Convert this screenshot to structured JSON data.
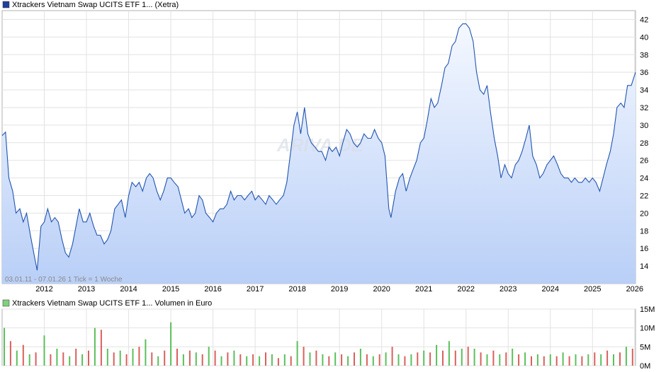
{
  "chart_data": [
    {
      "type": "area",
      "title": "Xtrackers Vietnam Swap UCITS ETF 1... (Xetra)",
      "legend": "Xtrackers Vietnam Swap UCITS ETF 1... (Xetra)",
      "legend_color": "#1f3f9f",
      "line_color": "#2255b0",
      "fill_top_color": "#f4f8ff",
      "fill_bottom_color": "#b9cff7",
      "grid": true,
      "y_axis_side": "right",
      "watermark": "ARIVA.DE",
      "note": "03.01.11 - 07.01.26   1 Tick = 1 Woche",
      "ylim": [
        12,
        43
      ],
      "y_ticks": [
        14,
        16,
        18,
        20,
        22,
        24,
        26,
        28,
        30,
        32,
        34,
        36,
        38,
        40,
        42
      ],
      "xlim": [
        2011.0,
        2026.02
      ],
      "x_ticks": [
        "2012",
        "2013",
        "2014",
        "2015",
        "2016",
        "2017",
        "2018",
        "2019",
        "2020",
        "2021",
        "2022",
        "2023",
        "2024",
        "2025",
        "2026"
      ],
      "series": [
        {
          "x": [
            2011.0,
            2011.08,
            2011.16,
            2011.25,
            2011.33,
            2011.42,
            2011.5,
            2011.58,
            2011.67,
            2011.75,
            2011.83,
            2011.92,
            2012.0,
            2012.08,
            2012.17,
            2012.25,
            2012.33,
            2012.42,
            2012.5,
            2012.58,
            2012.67,
            2012.75,
            2012.83,
            2012.92,
            2013.0,
            2013.08,
            2013.17,
            2013.25,
            2013.33,
            2013.42,
            2013.5,
            2013.58,
            2013.67,
            2013.75,
            2013.83,
            2013.92,
            2014.0,
            2014.08,
            2014.17,
            2014.25,
            2014.33,
            2014.42,
            2014.5,
            2014.58,
            2014.67,
            2014.75,
            2014.83,
            2014.92,
            2015.0,
            2015.08,
            2015.17,
            2015.25,
            2015.33,
            2015.42,
            2015.5,
            2015.58,
            2015.67,
            2015.75,
            2015.83,
            2015.92,
            2016.0,
            2016.08,
            2016.17,
            2016.25,
            2016.33,
            2016.42,
            2016.5,
            2016.58,
            2016.67,
            2016.75,
            2016.83,
            2016.92,
            2017.0,
            2017.08,
            2017.17,
            2017.25,
            2017.33,
            2017.42,
            2017.5,
            2017.58,
            2017.67,
            2017.75,
            2017.83,
            2017.92,
            2018.0,
            2018.08,
            2018.17,
            2018.25,
            2018.33,
            2018.42,
            2018.5,
            2018.58,
            2018.67,
            2018.75,
            2018.83,
            2018.92,
            2019.0,
            2019.08,
            2019.17,
            2019.25,
            2019.33,
            2019.42,
            2019.5,
            2019.58,
            2019.67,
            2019.75,
            2019.83,
            2019.92,
            2020.0,
            2020.08,
            2020.17,
            2020.22,
            2020.33,
            2020.42,
            2020.5,
            2020.58,
            2020.67,
            2020.75,
            2020.83,
            2020.92,
            2021.0,
            2021.08,
            2021.17,
            2021.25,
            2021.33,
            2021.42,
            2021.5,
            2021.58,
            2021.67,
            2021.75,
            2021.83,
            2021.92,
            2022.0,
            2022.08,
            2022.17,
            2022.25,
            2022.33,
            2022.42,
            2022.5,
            2022.58,
            2022.67,
            2022.75,
            2022.83,
            2022.92,
            2023.0,
            2023.08,
            2023.17,
            2023.25,
            2023.33,
            2023.42,
            2023.5,
            2023.58,
            2023.67,
            2023.75,
            2023.83,
            2023.92,
            2024.0,
            2024.08,
            2024.17,
            2024.25,
            2024.33,
            2024.42,
            2024.5,
            2024.58,
            2024.67,
            2024.75,
            2024.83,
            2024.92,
            2025.0,
            2025.08,
            2025.17,
            2025.25,
            2025.33,
            2025.42,
            2025.5,
            2025.58,
            2025.67,
            2025.75,
            2025.83,
            2025.92,
            2026.02
          ],
          "values": [
            28.8,
            29.2,
            24.0,
            22.5,
            20.0,
            20.5,
            19.0,
            20.0,
            17.5,
            15.5,
            13.5,
            18.5,
            19.0,
            20.5,
            19.0,
            19.5,
            19.0,
            17.0,
            15.5,
            15.0,
            16.5,
            18.5,
            20.5,
            19.0,
            19.0,
            20.0,
            18.5,
            17.5,
            17.5,
            16.5,
            17.0,
            18.0,
            20.5,
            21.0,
            21.5,
            19.5,
            22.0,
            23.5,
            23.0,
            23.5,
            22.5,
            24.0,
            24.5,
            24.0,
            22.5,
            21.5,
            22.5,
            24.0,
            24.0,
            23.5,
            23.0,
            21.5,
            20.0,
            20.5,
            19.5,
            20.0,
            22.0,
            21.5,
            20.0,
            19.5,
            19.0,
            20.0,
            20.5,
            20.5,
            21.0,
            22.5,
            21.5,
            22.0,
            22.0,
            21.5,
            22.0,
            22.5,
            21.5,
            22.0,
            21.5,
            21.0,
            22.0,
            21.5,
            21.0,
            21.5,
            22.0,
            23.5,
            26.5,
            30.0,
            31.5,
            29.0,
            32.0,
            29.0,
            28.0,
            27.5,
            27.0,
            27.0,
            26.0,
            27.5,
            27.0,
            27.5,
            26.5,
            28.0,
            29.5,
            29.0,
            28.0,
            27.5,
            28.0,
            29.0,
            28.5,
            28.5,
            29.5,
            28.5,
            28.0,
            26.5,
            20.5,
            19.5,
            22.5,
            24.0,
            24.5,
            22.5,
            24.0,
            25.0,
            26.0,
            28.0,
            28.5,
            30.5,
            33.0,
            32.0,
            32.5,
            34.5,
            36.5,
            37.0,
            39.0,
            39.5,
            41.0,
            41.5,
            41.5,
            41.0,
            39.5,
            36.0,
            34.0,
            33.5,
            34.5,
            31.5,
            28.5,
            26.5,
            24.0,
            25.5,
            24.5,
            24.0,
            25.5,
            26.0,
            27.0,
            28.5,
            30.0,
            26.5,
            25.5,
            24.0,
            24.5,
            25.5,
            26.0,
            26.5,
            25.5,
            24.5,
            24.0,
            24.0,
            23.5,
            24.0,
            23.5,
            23.5,
            24.0,
            23.5,
            24.0,
            23.5,
            22.5,
            24.0,
            25.5,
            27.0,
            29.0,
            32.0,
            32.5,
            32.0,
            34.5,
            34.5,
            36.0
          ]
        }
      ]
    },
    {
      "type": "bar",
      "title": "Xtrackers Vietnam Swap UCITS ETF 1... Volumen in Euro",
      "legend": "Xtrackers Vietnam Swap UCITS ETF 1... Volumen in Euro",
      "legend_color": "#7fd07f",
      "colors": [
        "#5cbf5c",
        "#d9605c"
      ],
      "grid": true,
      "y_axis_side": "right",
      "ylim": [
        0,
        15
      ],
      "y_ticks": [
        "0M",
        "5M",
        "10M",
        "15M"
      ],
      "y_unit": "M",
      "x_ticks": [
        "2012",
        "2013",
        "2014",
        "2015",
        "2016",
        "2017",
        "2018",
        "2019",
        "2020",
        "2021",
        "2022",
        "2023",
        "2024",
        "2025",
        "2026"
      ],
      "xlim": [
        2011.0,
        2026.02
      ],
      "series": [
        {
          "name": "Volumen",
          "x": [
            2011.05,
            2011.2,
            2011.35,
            2011.5,
            2011.65,
            2011.8,
            2012.0,
            2012.15,
            2012.3,
            2012.45,
            2012.6,
            2012.75,
            2012.9,
            2013.05,
            2013.2,
            2013.35,
            2013.5,
            2013.65,
            2013.8,
            2013.95,
            2014.1,
            2014.25,
            2014.4,
            2014.55,
            2014.7,
            2014.85,
            2015.0,
            2015.15,
            2015.3,
            2015.45,
            2015.6,
            2015.75,
            2015.9,
            2016.05,
            2016.2,
            2016.35,
            2016.5,
            2016.65,
            2016.8,
            2016.95,
            2017.1,
            2017.25,
            2017.4,
            2017.55,
            2017.7,
            2017.85,
            2018.0,
            2018.15,
            2018.3,
            2018.45,
            2018.6,
            2018.75,
            2018.9,
            2019.05,
            2019.2,
            2019.35,
            2019.5,
            2019.65,
            2019.8,
            2019.95,
            2020.1,
            2020.25,
            2020.4,
            2020.55,
            2020.7,
            2020.85,
            2021.0,
            2021.15,
            2021.3,
            2021.45,
            2021.6,
            2021.75,
            2021.9,
            2022.05,
            2022.2,
            2022.35,
            2022.5,
            2022.65,
            2022.8,
            2022.95,
            2023.1,
            2023.25,
            2023.4,
            2023.55,
            2023.7,
            2023.85,
            2024.0,
            2024.15,
            2024.3,
            2024.45,
            2024.6,
            2024.75,
            2024.9,
            2025.05,
            2025.2,
            2025.35,
            2025.5,
            2025.65,
            2025.8,
            2025.95
          ],
          "values": [
            10.0,
            6.5,
            4.0,
            5.5,
            3.0,
            3.5,
            8.0,
            3.0,
            4.5,
            3.5,
            2.5,
            4.5,
            3.0,
            4.0,
            10.0,
            9.5,
            4.5,
            3.5,
            4.0,
            3.0,
            4.5,
            5.0,
            7.0,
            3.5,
            2.5,
            4.0,
            11.5,
            4.5,
            3.0,
            4.0,
            3.5,
            3.0,
            5.0,
            4.0,
            2.5,
            3.5,
            4.0,
            3.0,
            2.5,
            3.0,
            2.5,
            3.5,
            3.0,
            2.0,
            3.0,
            2.5,
            6.5,
            5.0,
            3.5,
            4.0,
            3.0,
            2.5,
            3.5,
            3.0,
            2.5,
            3.5,
            4.5,
            3.0,
            2.5,
            3.0,
            3.5,
            5.0,
            3.0,
            2.5,
            3.0,
            3.5,
            4.0,
            3.5,
            5.5,
            4.0,
            6.5,
            4.0,
            4.5,
            5.0,
            4.5,
            3.5,
            3.0,
            4.0,
            3.0,
            3.5,
            4.5,
            3.0,
            3.5,
            2.5,
            3.0,
            2.5,
            3.0,
            2.5,
            3.5,
            2.5,
            3.0,
            2.5,
            3.0,
            3.5,
            3.0,
            4.0,
            3.0,
            3.5,
            5.0,
            4.5
          ]
        }
      ]
    }
  ]
}
